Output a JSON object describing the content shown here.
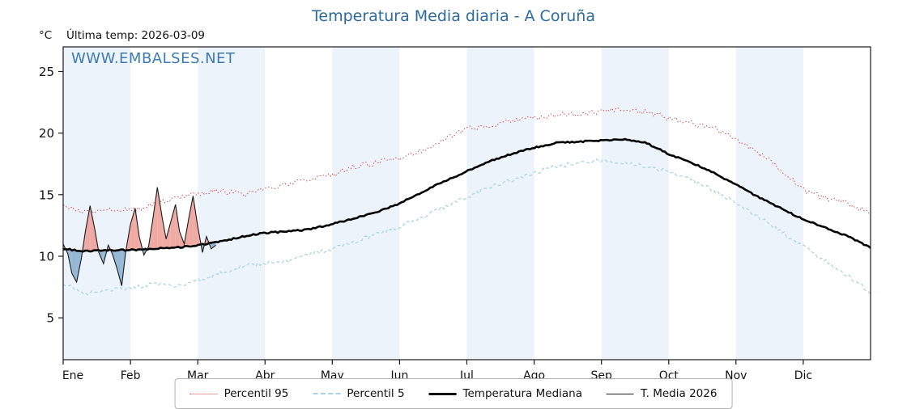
{
  "header": {
    "unit": "°C",
    "watermark": "WWW.EMBALSES.NET"
  },
  "colors": {
    "title": "#2d6a9f",
    "watermark": "#3c7ab5",
    "band": "#edf3fa",
    "axis": "#1a1a1a"
  },
  "chart_data": {
    "type": "line",
    "title": "Temperatura Media diaria - A Coruña",
    "annotation": "Última temp: 2026-03-09",
    "ylabel": "°C",
    "xlabel": "",
    "ylim": [
      1.6,
      27
    ],
    "yticks": [
      5,
      10,
      15,
      20,
      25
    ],
    "x_months": [
      "Ene",
      "Feb",
      "Mar",
      "Abr",
      "May",
      "Jun",
      "Jul",
      "Ago",
      "Sep",
      "Oct",
      "Nov",
      "Dic"
    ],
    "legend_position": "bottom",
    "grid": false,
    "series": [
      {
        "name": "Percentil 95",
        "style": "dotted",
        "color": "#d23b3b",
        "x_unit": "month index 0-12, values evenly spaced",
        "values": [
          14.0,
          13.6,
          13.9,
          13.7,
          14.2,
          14.8,
          15.1,
          15.3,
          15.0,
          15.4,
          15.8,
          16.3,
          16.6,
          17.3,
          17.6,
          18.0,
          18.6,
          19.6,
          20.3,
          20.6,
          21.0,
          21.2,
          21.5,
          21.6,
          21.7,
          21.9,
          21.7,
          21.2,
          20.8,
          20.4,
          19.5,
          18.4,
          17.1,
          15.4,
          14.7,
          14.3,
          13.5
        ]
      },
      {
        "name": "Percentil 5",
        "style": "dashed",
        "color": "#a5d3e2",
        "x_unit": "month index 0-12, values evenly spaced",
        "values": [
          7.8,
          7.0,
          7.3,
          7.4,
          7.8,
          7.5,
          8.0,
          8.6,
          9.2,
          9.4,
          9.6,
          10.2,
          10.6,
          11.2,
          11.8,
          12.4,
          13.2,
          14.0,
          14.8,
          15.6,
          16.2,
          16.8,
          17.3,
          17.6,
          17.8,
          17.6,
          17.3,
          16.9,
          16.2,
          15.3,
          14.4,
          13.2,
          12.0,
          10.8,
          9.6,
          8.4,
          7.1
        ]
      },
      {
        "name": "Temperatura Mediana",
        "style": "solid-thick",
        "color": "#000000",
        "x_unit": "month index 0-12, values evenly spaced",
        "values": [
          10.6,
          10.4,
          10.5,
          10.5,
          10.6,
          10.7,
          10.9,
          11.2,
          11.6,
          11.9,
          12.0,
          12.2,
          12.6,
          13.1,
          13.6,
          14.3,
          15.2,
          16.1,
          16.9,
          17.7,
          18.3,
          18.8,
          19.2,
          19.3,
          19.4,
          19.5,
          19.2,
          18.3,
          17.6,
          16.8,
          15.8,
          14.8,
          13.9,
          13.0,
          12.3,
          11.6,
          10.7
        ]
      },
      {
        "name": "T. Media 2026",
        "style": "solid-thin",
        "color": "#1a1a1a",
        "fill_above_color": "#efa39c",
        "fill_below_color": "#8fb2d3",
        "x": [
          0.0,
          0.07,
          0.13,
          0.2,
          0.27,
          0.33,
          0.4,
          0.47,
          0.53,
          0.6,
          0.67,
          0.73,
          0.8,
          0.87,
          0.93,
          1.0,
          1.07,
          1.13,
          1.2,
          1.27,
          1.33,
          1.4,
          1.47,
          1.53,
          1.6,
          1.67,
          1.73,
          1.8,
          1.87,
          1.93,
          2.0,
          2.07,
          2.13,
          2.2,
          2.27
        ],
        "values": [
          11.0,
          10.2,
          8.6,
          7.9,
          9.8,
          12.0,
          14.1,
          12.2,
          10.3,
          9.4,
          10.9,
          10.2,
          9.0,
          7.6,
          10.4,
          12.6,
          13.9,
          11.6,
          10.1,
          10.8,
          12.9,
          15.6,
          13.2,
          11.4,
          12.8,
          14.2,
          12.0,
          11.0,
          13.2,
          14.9,
          12.4,
          10.3,
          11.6,
          10.6,
          10.9
        ]
      }
    ]
  }
}
